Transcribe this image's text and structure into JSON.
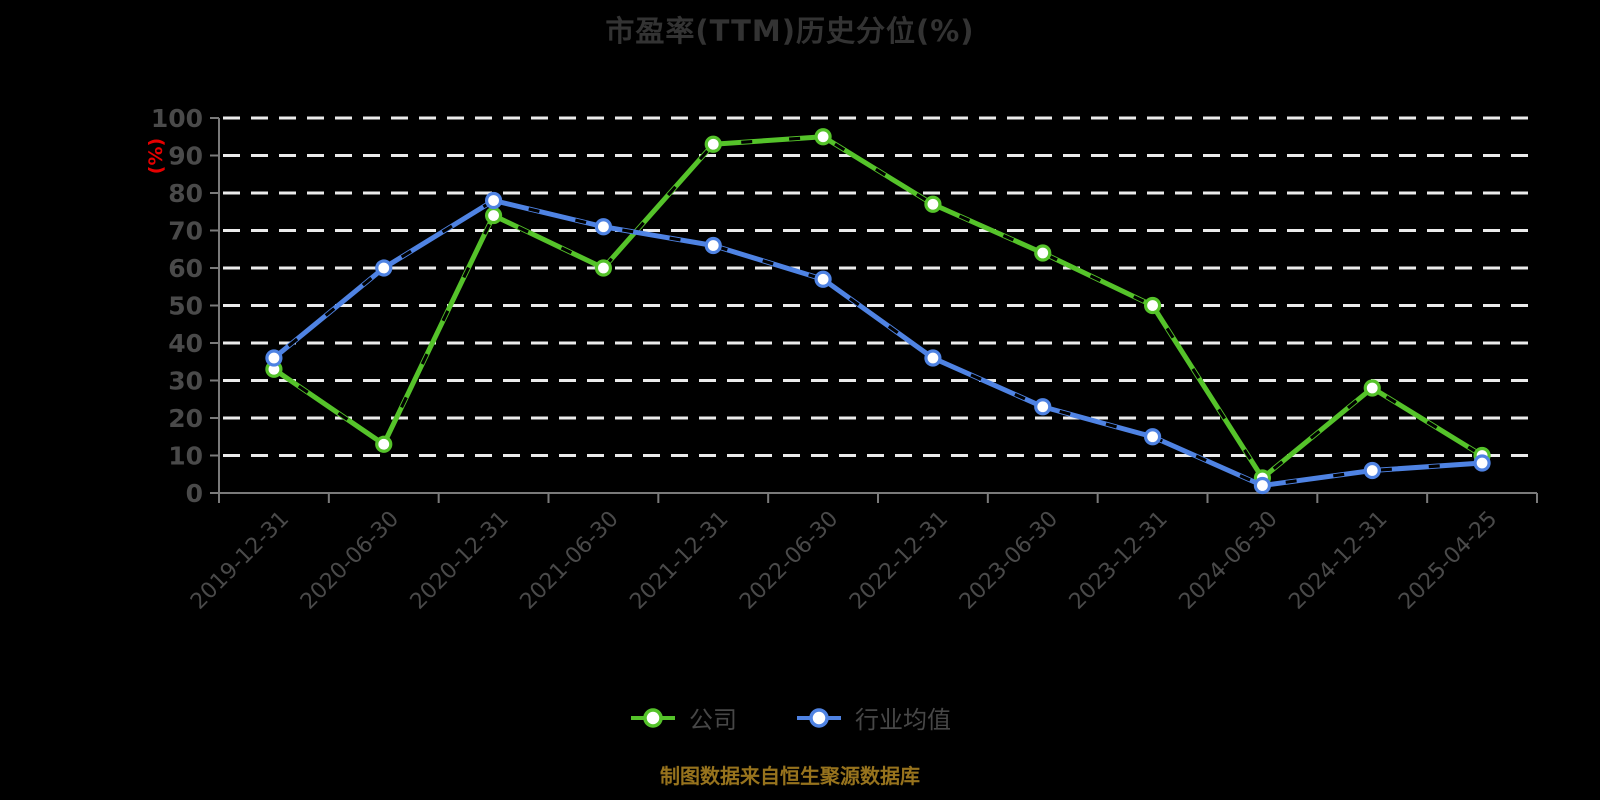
{
  "title": "市盈率(TTM)历史分位(%)",
  "footer_note": "制图数据来自恒生聚源数据库",
  "y_axis": {
    "unit_label": "(%)"
  },
  "legend": {
    "items": [
      {
        "label": "公司"
      },
      {
        "label": "行业均值"
      }
    ]
  },
  "colors": {
    "background": "#000000",
    "title_text": "#333333",
    "axis_line": "#7a7a7a",
    "axis_text": "#4a4a4a",
    "gridline": "#ebebeb",
    "unit_label": "#e60000",
    "footer_text": "#97731d",
    "company_line": "#55c32a",
    "industry_line": "#4f83e3",
    "marker_fill": "#ffffff",
    "line_dash_overlay": "#000000"
  },
  "chart_data": {
    "type": "line",
    "title": "市盈率(TTM)历史分位(%)",
    "categories": [
      "2019-12-31",
      "2020-06-30",
      "2020-12-31",
      "2021-06-30",
      "2021-12-31",
      "2022-06-30",
      "2022-12-31",
      "2023-06-30",
      "2023-12-31",
      "2024-06-30",
      "2024-12-31",
      "2025-04-25"
    ],
    "series": [
      {
        "name": "公司",
        "color": "#55c32a",
        "values": [
          33,
          13,
          74,
          60,
          93,
          95,
          77,
          64,
          50,
          4,
          28,
          10
        ]
      },
      {
        "name": "行业均值",
        "color": "#4f83e3",
        "values": [
          36,
          60,
          78,
          71,
          66,
          57,
          36,
          23,
          15,
          2,
          6,
          8
        ]
      }
    ],
    "ylabel": "(%)",
    "ylim": [
      0,
      100
    ],
    "yticks": [
      0,
      10,
      20,
      30,
      40,
      50,
      60,
      70,
      80,
      90,
      100
    ],
    "grid": "horizontal-dashed-white",
    "legend_position": "bottom-center"
  }
}
